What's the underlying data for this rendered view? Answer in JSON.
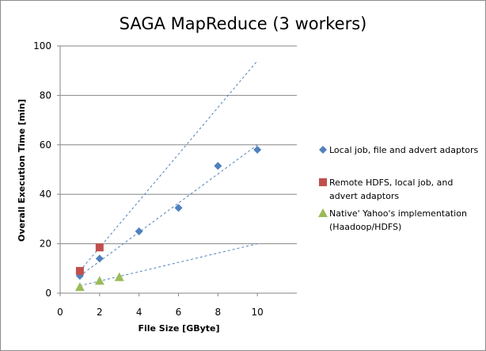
{
  "chart_data": {
    "type": "scatter",
    "title": "SAGA MapReduce (3 workers)",
    "xlabel": "File Size  [GByte]",
    "ylabel": "Overall Execution Time  [min]",
    "xlim": [
      0,
      12
    ],
    "ylim": [
      0,
      100
    ],
    "xticks": [
      0,
      2,
      4,
      6,
      8,
      10
    ],
    "yticks": [
      0,
      20,
      40,
      60,
      80,
      100
    ],
    "grid": "horizontal",
    "legend_position": "right",
    "series": [
      {
        "name": "Local job, file and advert adaptors",
        "marker": "diamond",
        "color": "#4f81bd",
        "x": [
          1,
          2,
          4,
          6,
          8,
          10
        ],
        "y": [
          7,
          14,
          25,
          34.5,
          51.5,
          58
        ],
        "trendline": {
          "x": [
            1,
            10
          ],
          "y": [
            7,
            60
          ]
        }
      },
      {
        "name": "Remote HDFS, local job, and advert adaptors",
        "marker": "square",
        "color": "#c0504d",
        "x": [
          1,
          2
        ],
        "y": [
          9,
          18.5
        ],
        "trendline": {
          "x": [
            1,
            10
          ],
          "y": [
            9,
            94
          ]
        }
      },
      {
        "name": "Native' Yahoo's implementation (Haadoop/HDFS)",
        "marker": "triangle",
        "color": "#9bbb59",
        "x": [
          1,
          2,
          3
        ],
        "y": [
          2.5,
          5,
          6.5
        ],
        "trendline": {
          "x": [
            1,
            10
          ],
          "y": [
            3,
            20
          ]
        }
      }
    ]
  }
}
